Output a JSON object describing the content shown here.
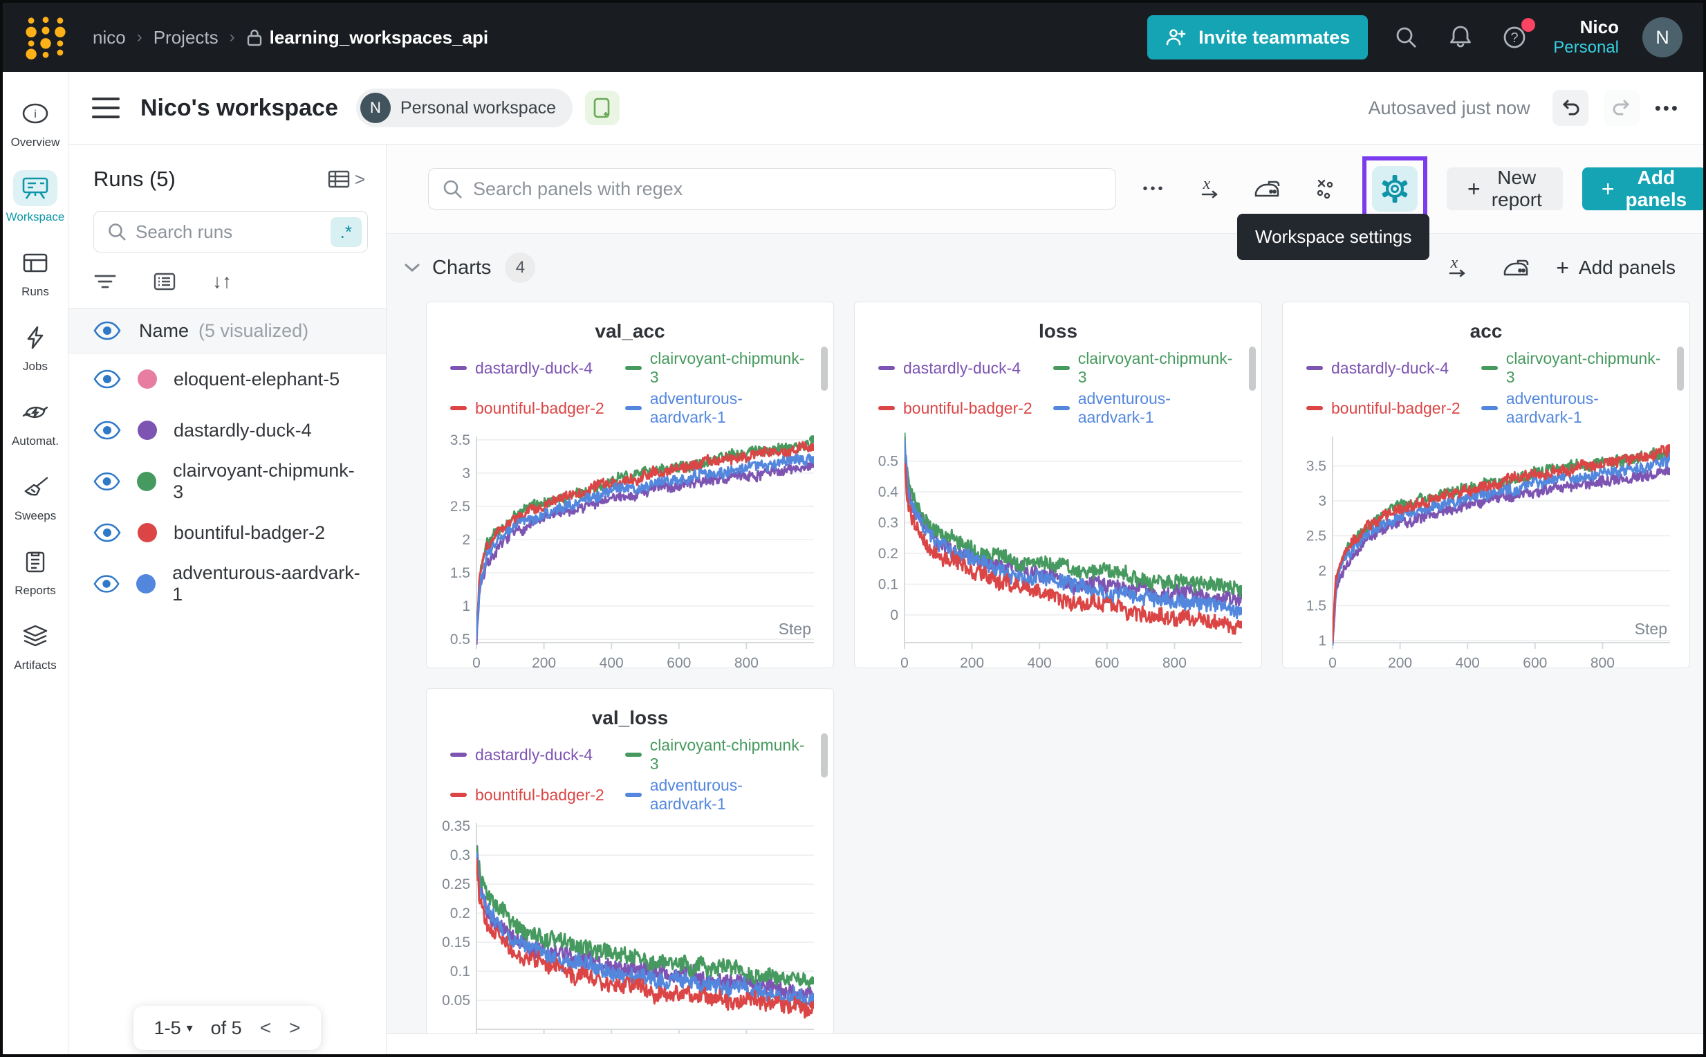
{
  "navbar": {
    "breadcrumb": {
      "entity": "nico",
      "section": "Projects",
      "project": "learning_workspaces_api"
    },
    "invite_label": "Invite teammates",
    "user_name": "Nico",
    "user_scope": "Personal",
    "avatar_initial": "N"
  },
  "header": {
    "title": "Nico's workspace",
    "badge_initial": "N",
    "badge_label": "Personal workspace",
    "autosave_status": "Autosaved just now"
  },
  "rail": {
    "items": [
      {
        "label": "Overview"
      },
      {
        "label": "Workspace"
      },
      {
        "label": "Runs"
      },
      {
        "label": "Jobs"
      },
      {
        "label": "Automat."
      },
      {
        "label": "Sweeps"
      },
      {
        "label": "Reports"
      },
      {
        "label": "Artifacts"
      }
    ]
  },
  "runs_panel": {
    "title": "Runs (5)",
    "search_placeholder": "Search runs",
    "regex_toggle": ".*",
    "header": {
      "name": "Name",
      "visualized": "(5 visualized)"
    },
    "runs": [
      {
        "name": "eloquent-elephant-5",
        "color": "#e87da2"
      },
      {
        "name": "dastardly-duck-4",
        "color": "#7d54b2"
      },
      {
        "name": "clairvoyant-chipmunk-3",
        "color": "#479a5f"
      },
      {
        "name": "bountiful-badger-2",
        "color": "#db4545"
      },
      {
        "name": "adventurous-aardvark-1",
        "color": "#5387dd"
      }
    ],
    "pagination": {
      "range": "1-5",
      "of": "of 5"
    }
  },
  "toolbar": {
    "search_placeholder": "Search panels with regex",
    "new_report": "New report",
    "add_panels": "Add panels",
    "settings_tooltip": "Workspace settings"
  },
  "charts_section": {
    "title": "Charts",
    "count": "4",
    "add_panels": "Add panels"
  },
  "icons": {
    "more": "•••",
    "sort": "↓↑",
    "expand": ">",
    "help": "?",
    "prev": "<",
    "next": ">",
    "caret_down": "▾",
    "plus": "+"
  },
  "panel_legend": [
    {
      "label": "dastardly-duck-4",
      "color": "#7d54b2"
    },
    {
      "label": "clairvoyant-chipmunk-3",
      "color": "#479a5f"
    },
    {
      "label": "bountiful-badger-2",
      "color": "#db4545"
    },
    {
      "label": "adventurous-aardvark-1",
      "color": "#5387dd"
    }
  ],
  "chart_data": [
    {
      "type": "line",
      "title": "val_acc",
      "xlabel": "Step",
      "xlim": [
        0,
        1000
      ],
      "x_ticks": [
        0,
        200,
        400,
        600,
        800
      ],
      "ylim": [
        0.45,
        3.55
      ],
      "y_ticks": [
        0.5,
        1,
        1.5,
        2,
        2.5,
        3,
        3.5
      ],
      "noise": 0.09,
      "grid": true,
      "legend_position": "top",
      "series": [
        {
          "name": "dastardly-duck-4",
          "color": "#7d54b2",
          "x": [
            0,
            10,
            30,
            60,
            100,
            150,
            220,
            300,
            400,
            500,
            600,
            700,
            800,
            900,
            1000
          ],
          "y": [
            0.5,
            1.28,
            1.65,
            1.85,
            2.05,
            2.2,
            2.35,
            2.47,
            2.6,
            2.72,
            2.82,
            2.9,
            2.97,
            3.02,
            3.1
          ]
        },
        {
          "name": "clairvoyant-chipmunk-3",
          "color": "#479a5f",
          "x": [
            0,
            10,
            30,
            60,
            100,
            150,
            220,
            300,
            400,
            500,
            600,
            700,
            800,
            900,
            1000
          ],
          "y": [
            0.6,
            1.45,
            1.9,
            2.1,
            2.3,
            2.45,
            2.6,
            2.72,
            2.88,
            3.0,
            3.1,
            3.2,
            3.28,
            3.35,
            3.45
          ]
        },
        {
          "name": "bountiful-badger-2",
          "color": "#db4545",
          "x": [
            0,
            10,
            30,
            60,
            100,
            150,
            220,
            300,
            400,
            500,
            600,
            700,
            800,
            900,
            1000
          ],
          "y": [
            0.6,
            1.42,
            1.87,
            2.07,
            2.27,
            2.42,
            2.57,
            2.7,
            2.85,
            2.97,
            3.07,
            3.17,
            3.25,
            3.32,
            3.42
          ]
        },
        {
          "name": "adventurous-aardvark-1",
          "color": "#5387dd",
          "x": [
            0,
            10,
            30,
            60,
            100,
            150,
            220,
            300,
            400,
            500,
            600,
            700,
            800,
            900,
            1000
          ],
          "y": [
            0.55,
            1.35,
            1.75,
            1.95,
            2.15,
            2.3,
            2.45,
            2.57,
            2.72,
            2.83,
            2.93,
            3.0,
            3.08,
            3.15,
            3.25
          ]
        }
      ]
    },
    {
      "type": "line",
      "title": "loss",
      "xlabel": "",
      "xlim": [
        0,
        1000
      ],
      "x_ticks": [
        0,
        200,
        400,
        600,
        800
      ],
      "ylim": [
        -0.09,
        0.58
      ],
      "y_ticks": [
        0,
        0.1,
        0.2,
        0.3,
        0.4,
        0.5
      ],
      "noise": 0.028,
      "grid": true,
      "legend_position": "top",
      "series": [
        {
          "name": "dastardly-duck-4",
          "color": "#7d54b2",
          "x": [
            0,
            10,
            30,
            60,
            100,
            150,
            220,
            300,
            400,
            500,
            600,
            700,
            800,
            900,
            1000
          ],
          "y": [
            0.55,
            0.41,
            0.34,
            0.29,
            0.24,
            0.21,
            0.18,
            0.155,
            0.13,
            0.11,
            0.095,
            0.08,
            0.07,
            0.06,
            0.045
          ]
        },
        {
          "name": "clairvoyant-chipmunk-3",
          "color": "#479a5f",
          "x": [
            0,
            10,
            30,
            60,
            100,
            150,
            220,
            300,
            400,
            500,
            600,
            700,
            800,
            900,
            1000
          ],
          "y": [
            0.57,
            0.44,
            0.37,
            0.32,
            0.27,
            0.24,
            0.21,
            0.19,
            0.165,
            0.15,
            0.135,
            0.12,
            0.11,
            0.1,
            0.08
          ]
        },
        {
          "name": "adventurous-aardvark-1",
          "color": "#5387dd",
          "x": [
            0,
            10,
            30,
            60,
            100,
            150,
            220,
            300,
            400,
            500,
            600,
            700,
            800,
            900,
            1000
          ],
          "y": [
            0.55,
            0.4,
            0.33,
            0.28,
            0.23,
            0.2,
            0.17,
            0.14,
            0.115,
            0.095,
            0.075,
            0.06,
            0.045,
            0.03,
            0.01
          ]
        },
        {
          "name": "bountiful-badger-2",
          "color": "#db4545",
          "x": [
            0,
            10,
            30,
            60,
            100,
            150,
            220,
            300,
            400,
            500,
            600,
            700,
            800,
            900,
            1000
          ],
          "y": [
            0.5,
            0.36,
            0.29,
            0.24,
            0.19,
            0.16,
            0.13,
            0.1,
            0.075,
            0.05,
            0.03,
            0.01,
            -0.005,
            -0.02,
            -0.04
          ]
        }
      ]
    },
    {
      "type": "line",
      "title": "acc",
      "xlabel": "Step",
      "xlim": [
        0,
        1000
      ],
      "x_ticks": [
        0,
        200,
        400,
        600,
        800
      ],
      "ylim": [
        0.97,
        3.92
      ],
      "y_ticks": [
        1,
        1.5,
        2,
        2.5,
        3,
        3.5
      ],
      "noise": 0.09,
      "grid": true,
      "legend_position": "top",
      "series": [
        {
          "name": "dastardly-duck-4",
          "color": "#7d54b2",
          "x": [
            0,
            10,
            30,
            60,
            100,
            150,
            220,
            300,
            400,
            500,
            600,
            700,
            800,
            900,
            1000
          ],
          "y": [
            1.0,
            1.72,
            2.02,
            2.22,
            2.42,
            2.57,
            2.7,
            2.82,
            2.95,
            3.05,
            3.15,
            3.22,
            3.3,
            3.36,
            3.44
          ]
        },
        {
          "name": "clairvoyant-chipmunk-3",
          "color": "#479a5f",
          "x": [
            0,
            10,
            30,
            60,
            100,
            150,
            220,
            300,
            400,
            500,
            600,
            700,
            800,
            900,
            1000
          ],
          "y": [
            1.0,
            1.9,
            2.25,
            2.45,
            2.65,
            2.8,
            2.95,
            3.07,
            3.2,
            3.3,
            3.4,
            3.48,
            3.55,
            3.62,
            3.72
          ]
        },
        {
          "name": "adventurous-aardvark-1",
          "color": "#5387dd",
          "x": [
            0,
            10,
            30,
            60,
            100,
            150,
            220,
            300,
            400,
            500,
            600,
            700,
            800,
            900,
            1000
          ],
          "y": [
            1.0,
            1.8,
            2.1,
            2.3,
            2.5,
            2.65,
            2.8,
            2.92,
            3.05,
            3.15,
            3.25,
            3.33,
            3.4,
            3.48,
            3.58
          ]
        },
        {
          "name": "bountiful-badger-2",
          "color": "#db4545",
          "x": [
            0,
            10,
            30,
            60,
            100,
            150,
            220,
            300,
            400,
            500,
            600,
            700,
            800,
            900,
            1000
          ],
          "y": [
            1.0,
            1.88,
            2.22,
            2.42,
            2.62,
            2.77,
            2.92,
            3.04,
            3.17,
            3.27,
            3.37,
            3.45,
            3.52,
            3.6,
            3.7
          ]
        }
      ]
    },
    {
      "type": "line",
      "title": "val_loss",
      "xlabel": "",
      "xlim": [
        0,
        1000
      ],
      "x_ticks": [
        0,
        200,
        400,
        600,
        800
      ],
      "ylim": [
        0.0,
        0.355
      ],
      "y_ticks": [
        0.05,
        0.1,
        0.15,
        0.2,
        0.25,
        0.3,
        0.35
      ],
      "noise": 0.016,
      "grid": true,
      "legend_position": "top",
      "series": [
        {
          "name": "dastardly-duck-4",
          "color": "#7d54b2",
          "x": [
            0,
            10,
            30,
            60,
            100,
            150,
            220,
            300,
            400,
            500,
            600,
            700,
            800,
            900,
            1000
          ],
          "y": [
            0.32,
            0.25,
            0.215,
            0.19,
            0.165,
            0.15,
            0.135,
            0.122,
            0.11,
            0.1,
            0.093,
            0.087,
            0.08,
            0.072,
            0.062
          ]
        },
        {
          "name": "clairvoyant-chipmunk-3",
          "color": "#479a5f",
          "x": [
            0,
            10,
            30,
            60,
            100,
            150,
            220,
            300,
            400,
            500,
            600,
            700,
            800,
            900,
            1000
          ],
          "y": [
            0.33,
            0.27,
            0.235,
            0.21,
            0.185,
            0.17,
            0.155,
            0.142,
            0.13,
            0.12,
            0.112,
            0.105,
            0.098,
            0.092,
            0.082
          ]
        },
        {
          "name": "adventurous-aardvark-1",
          "color": "#5387dd",
          "x": [
            0,
            10,
            30,
            60,
            100,
            150,
            220,
            300,
            400,
            500,
            600,
            700,
            800,
            900,
            1000
          ],
          "y": [
            0.31,
            0.24,
            0.205,
            0.18,
            0.155,
            0.14,
            0.125,
            0.112,
            0.1,
            0.09,
            0.082,
            0.074,
            0.066,
            0.058,
            0.048
          ]
        },
        {
          "name": "bountiful-badger-2",
          "color": "#db4545",
          "x": [
            0,
            10,
            30,
            60,
            100,
            150,
            220,
            300,
            400,
            500,
            600,
            700,
            800,
            900,
            1000
          ],
          "y": [
            0.3,
            0.22,
            0.185,
            0.16,
            0.135,
            0.12,
            0.105,
            0.092,
            0.08,
            0.07,
            0.062,
            0.054,
            0.047,
            0.04,
            0.032
          ]
        }
      ]
    }
  ]
}
